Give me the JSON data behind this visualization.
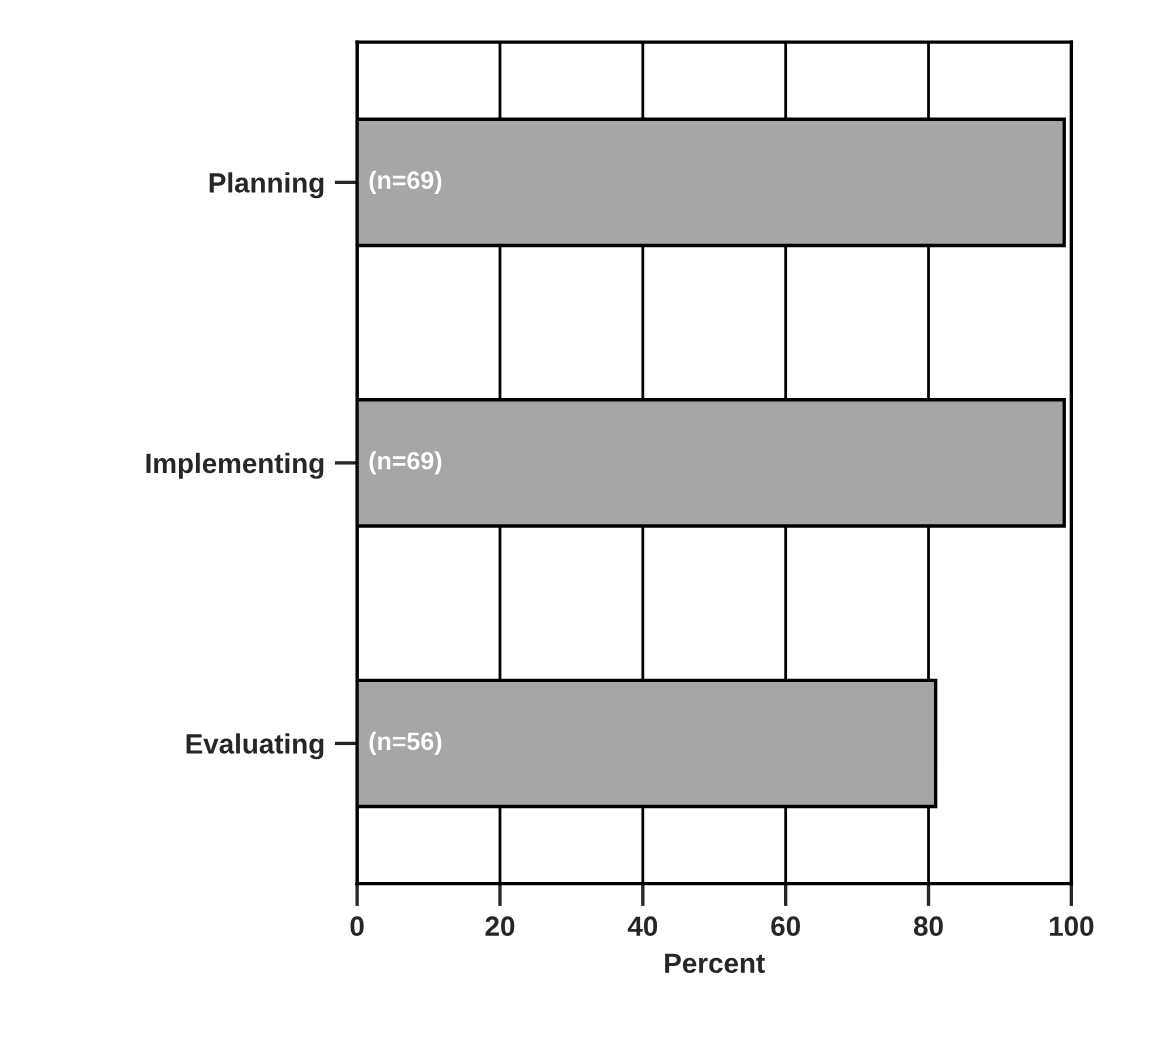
{
  "chart_data": {
    "type": "bar",
    "orientation": "horizontal",
    "xlabel": "Percent",
    "categories": [
      "Planning",
      "Implementing",
      "Evaluating"
    ],
    "series": [
      {
        "color": "#a6a6a6",
        "values": [
          99,
          99,
          81
        ]
      }
    ],
    "annotations": [
      "(n=69)",
      "(n=69)",
      "(n=56)"
    ],
    "xlim": [
      0,
      100
    ],
    "xticks": [
      0,
      20,
      40,
      60,
      80,
      100
    ],
    "grid": "x",
    "legend": false
  }
}
